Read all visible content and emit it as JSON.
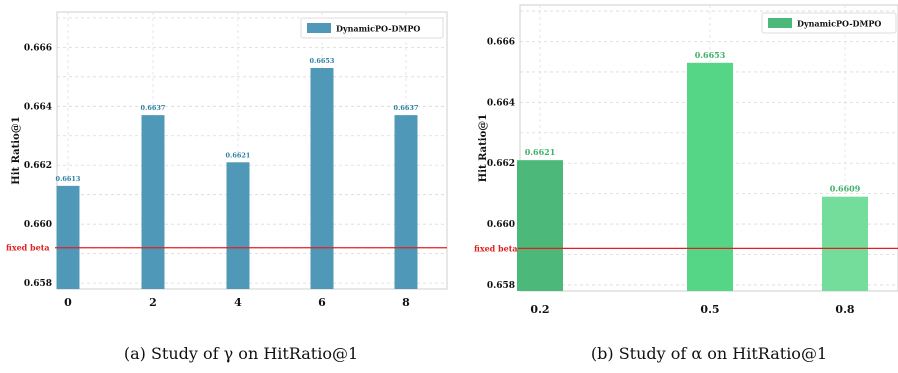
{
  "chart_data": [
    {
      "type": "bar",
      "caption": "(a) Study of γ on HitRatio@1",
      "ylabel": "Hit Ratio@1",
      "categories": [
        "0",
        "2",
        "4",
        "6",
        "8"
      ],
      "series": [
        {
          "name": "DynamicPO-DMPO",
          "values": [
            0.6613,
            0.6637,
            0.6621,
            0.6653,
            0.6637
          ],
          "data_labels": [
            "0.6613",
            "0.6637",
            "0.6621",
            "0.6653",
            "0.6637"
          ]
        }
      ],
      "bar_colors": [
        "#4f98b8",
        "#4f98b8",
        "#4f98b8",
        "#4f98b8",
        "#4f98b8"
      ],
      "label_color": "#2e7fa3",
      "ylim": [
        0.6578,
        0.6672
      ],
      "yticks": [
        "0.658",
        "0.660",
        "0.662",
        "0.664",
        "0.666"
      ],
      "ytick_values": [
        0.658,
        0.66,
        0.662,
        0.664,
        0.666
      ],
      "reference_line": {
        "label": "fixed beta",
        "value": 0.6592,
        "color": "#e02020"
      },
      "legend_position": "top-right",
      "grid": true
    },
    {
      "type": "bar",
      "caption": "(b) Study of α on HitRatio@1",
      "ylabel": "Hit Ratio@1",
      "categories": [
        "0.2",
        "0.5",
        "0.8"
      ],
      "series": [
        {
          "name": "DynamicPO-DMPO",
          "values": [
            0.6621,
            0.6653,
            0.6609
          ],
          "data_labels": [
            "0.6621",
            "0.6653",
            "0.6609"
          ]
        }
      ],
      "bar_colors": [
        "#4cb87a",
        "#55d686",
        "#74dd9c"
      ],
      "label_color": "#3fb06a",
      "ylim": [
        0.6578,
        0.6672
      ],
      "yticks": [
        "0.658",
        "0.660",
        "0.662",
        "0.664",
        "0.666"
      ],
      "ytick_values": [
        0.658,
        0.66,
        0.662,
        0.664,
        0.666
      ],
      "reference_line": {
        "label": "fixed beta",
        "value": 0.6592,
        "color": "#e02020"
      },
      "legend_position": "top-right",
      "grid": true
    }
  ]
}
